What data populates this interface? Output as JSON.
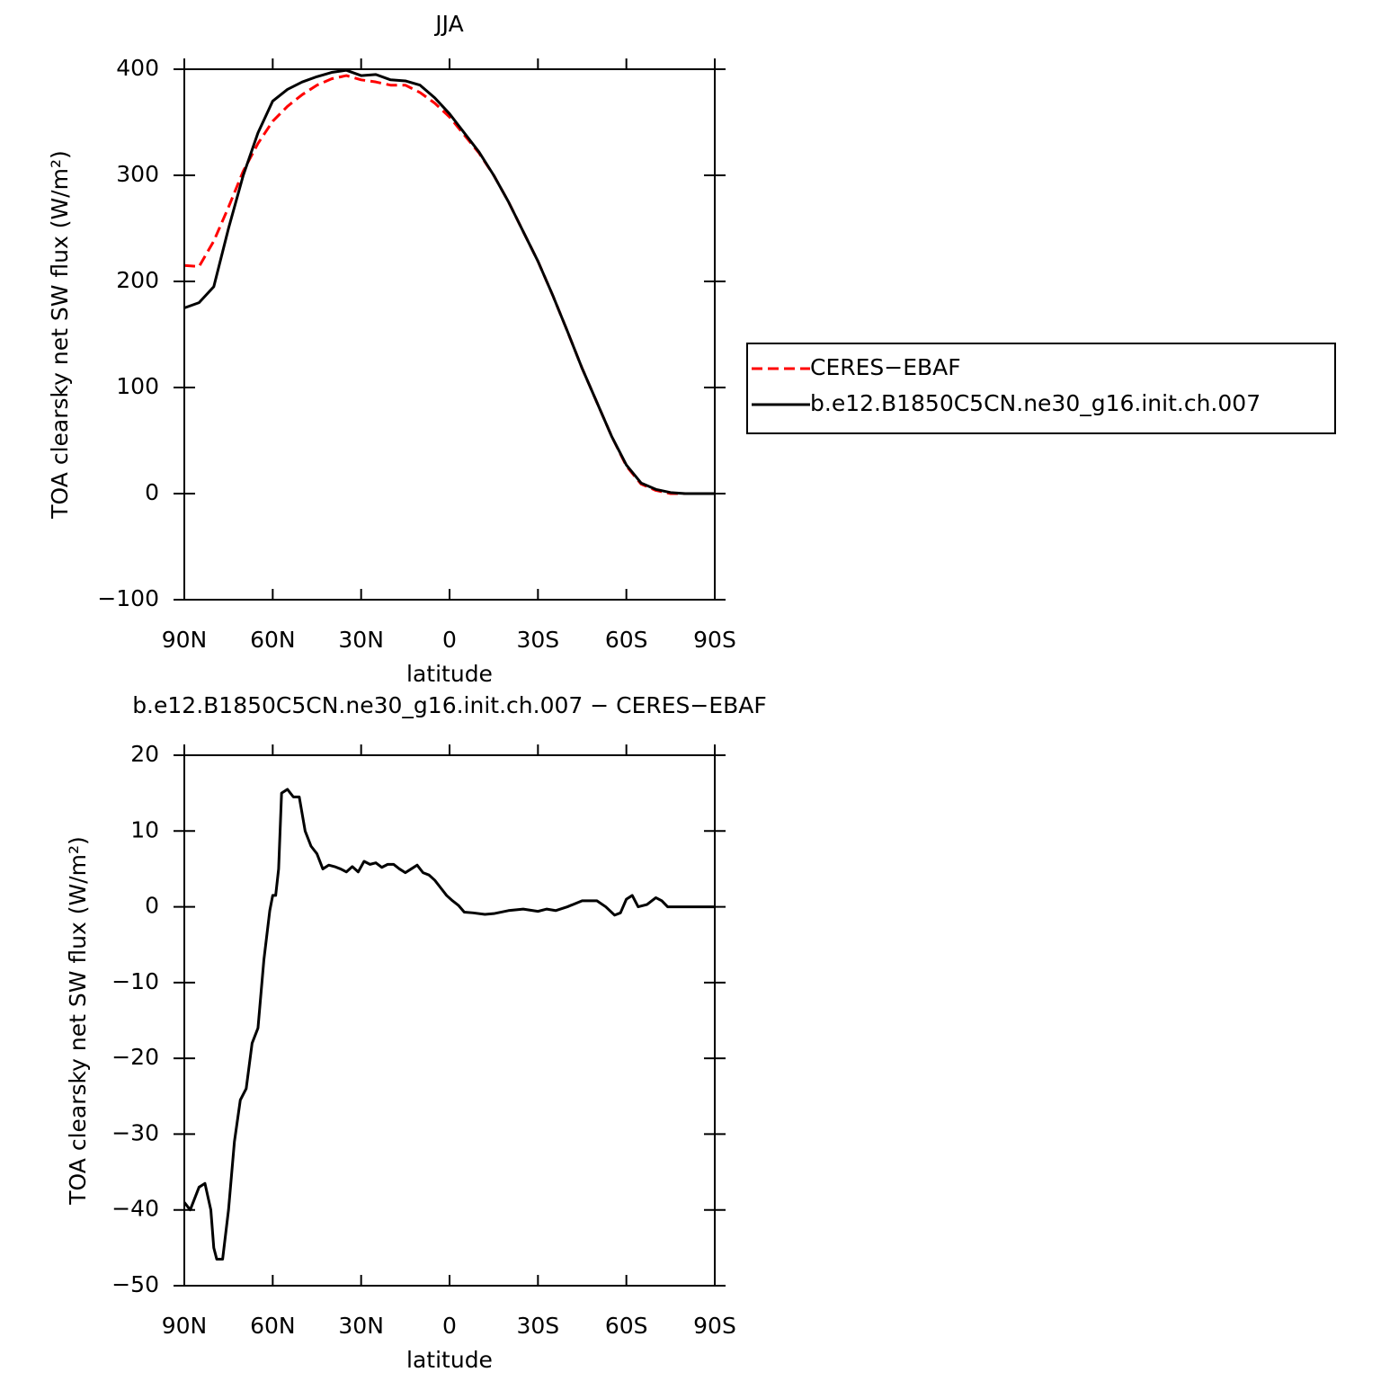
{
  "chart_data": [
    {
      "type": "line",
      "title": "JJA",
      "x_label": "latitude",
      "y_label": "TOA clearsky net SW flux (W/m²)",
      "x": [
        90,
        85,
        80,
        75,
        70,
        65,
        60,
        55,
        50,
        45,
        40,
        35,
        30,
        25,
        20,
        15,
        10,
        5,
        0,
        -5,
        -10,
        -15,
        -20,
        -25,
        -30,
        -35,
        -40,
        -45,
        -50,
        -55,
        -60,
        -65,
        -70,
        -75,
        -80,
        -85,
        -90
      ],
      "series": [
        {
          "name": "CERES−EBAF",
          "color": "#ff0000",
          "linestyle": "dashed",
          "values": [
            215,
            214,
            238,
            270,
            304,
            330,
            351,
            365,
            376,
            385,
            391,
            394,
            390,
            388,
            385,
            385,
            378,
            368,
            355,
            338,
            321,
            300,
            275,
            247,
            219,
            187,
            153,
            118,
            86,
            54,
            26,
            9,
            3,
            0,
            0,
            0,
            0
          ]
        },
        {
          "name": "b.e12.B1850C5CN.ne30_g16.init.ch.007",
          "color": "#000000",
          "linestyle": "solid",
          "values": [
            175,
            180,
            195,
            250,
            300,
            340,
            370,
            381,
            388,
            393,
            397,
            399,
            394,
            395,
            390,
            389,
            385,
            373,
            358,
            340,
            322,
            300,
            275,
            247,
            219,
            187,
            153,
            118,
            86,
            54,
            27,
            10,
            4,
            1,
            0,
            0,
            0
          ]
        }
      ],
      "xlim": [
        90,
        -90
      ],
      "xticks": [
        {
          "value": 90,
          "label": "90N"
        },
        {
          "value": 60,
          "label": "60N"
        },
        {
          "value": 30,
          "label": "30N"
        },
        0,
        {
          "value": -30,
          "label": "30S"
        },
        {
          "value": -60,
          "label": "60S"
        },
        {
          "value": -90,
          "label": "90S"
        }
      ],
      "ylim": [
        -100,
        400
      ],
      "yticks": [
        {
          "value": -100,
          "label": "−100"
        },
        0,
        100,
        200,
        300,
        400
      ],
      "legend": "right"
    },
    {
      "type": "line",
      "title": "b.e12.B1850C5CN.ne30_g16.init.ch.007 − CERES−EBAF",
      "x_label": "latitude",
      "y_label": "TOA clearsky net SW flux (W/m²)",
      "x": [
        90,
        88,
        85,
        83,
        81,
        80,
        79,
        77,
        75,
        73,
        71,
        69,
        67,
        65,
        63,
        61,
        60,
        59,
        58,
        57,
        55,
        53,
        51,
        49,
        47,
        45,
        43,
        41,
        39,
        37,
        35,
        33,
        31,
        29,
        27,
        25,
        23,
        21,
        19,
        17,
        15,
        13,
        11,
        9,
        7,
        5,
        3,
        1,
        -1,
        -3,
        -5,
        -8,
        -12,
        -15,
        -20,
        -25,
        -30,
        -33,
        -36,
        -40,
        -45,
        -50,
        -53,
        -56,
        -58,
        -60,
        -62,
        -64,
        -67,
        -70,
        -72,
        -74,
        -80,
        -90
      ],
      "color": "#000000",
      "values": [
        -39,
        -40,
        -37,
        -36.5,
        -40,
        -45,
        -46.5,
        -46.5,
        -40,
        -31,
        -25.5,
        -24,
        -18,
        -16,
        -7,
        -0.5,
        1.5,
        1.5,
        5,
        15,
        15.5,
        14.5,
        14.5,
        10,
        8,
        7,
        5,
        5.5,
        5.3,
        5,
        4.6,
        5.3,
        4.6,
        6,
        5.6,
        5.8,
        5.2,
        5.6,
        5.6,
        5,
        4.5,
        5,
        5.5,
        4.5,
        4.2,
        3.5,
        2.5,
        1.5,
        0.8,
        0.2,
        -0.7,
        -0.8,
        -1,
        -0.9,
        -0.5,
        -0.3,
        -0.6,
        -0.3,
        -0.5,
        0,
        0.8,
        0.8,
        0,
        -1.1,
        -0.8,
        1,
        1.5,
        0,
        0.3,
        1.2,
        0.8,
        0,
        0,
        0
      ],
      "xlim": [
        90,
        -90
      ],
      "xticks": [
        {
          "value": 90,
          "label": "90N"
        },
        {
          "value": 60,
          "label": "60N"
        },
        {
          "value": 30,
          "label": "30N"
        },
        0,
        {
          "value": -30,
          "label": "30S"
        },
        {
          "value": -60,
          "label": "60S"
        },
        {
          "value": -90,
          "label": "90S"
        }
      ],
      "ylim": [
        -50,
        20
      ],
      "yticks": [
        {
          "value": -50,
          "label": "−50"
        },
        {
          "value": -40,
          "label": "−40"
        },
        {
          "value": -30,
          "label": "−30"
        },
        {
          "value": -20,
          "label": "−20"
        },
        {
          "value": -10,
          "label": "−10"
        },
        0,
        10,
        20
      ]
    }
  ]
}
